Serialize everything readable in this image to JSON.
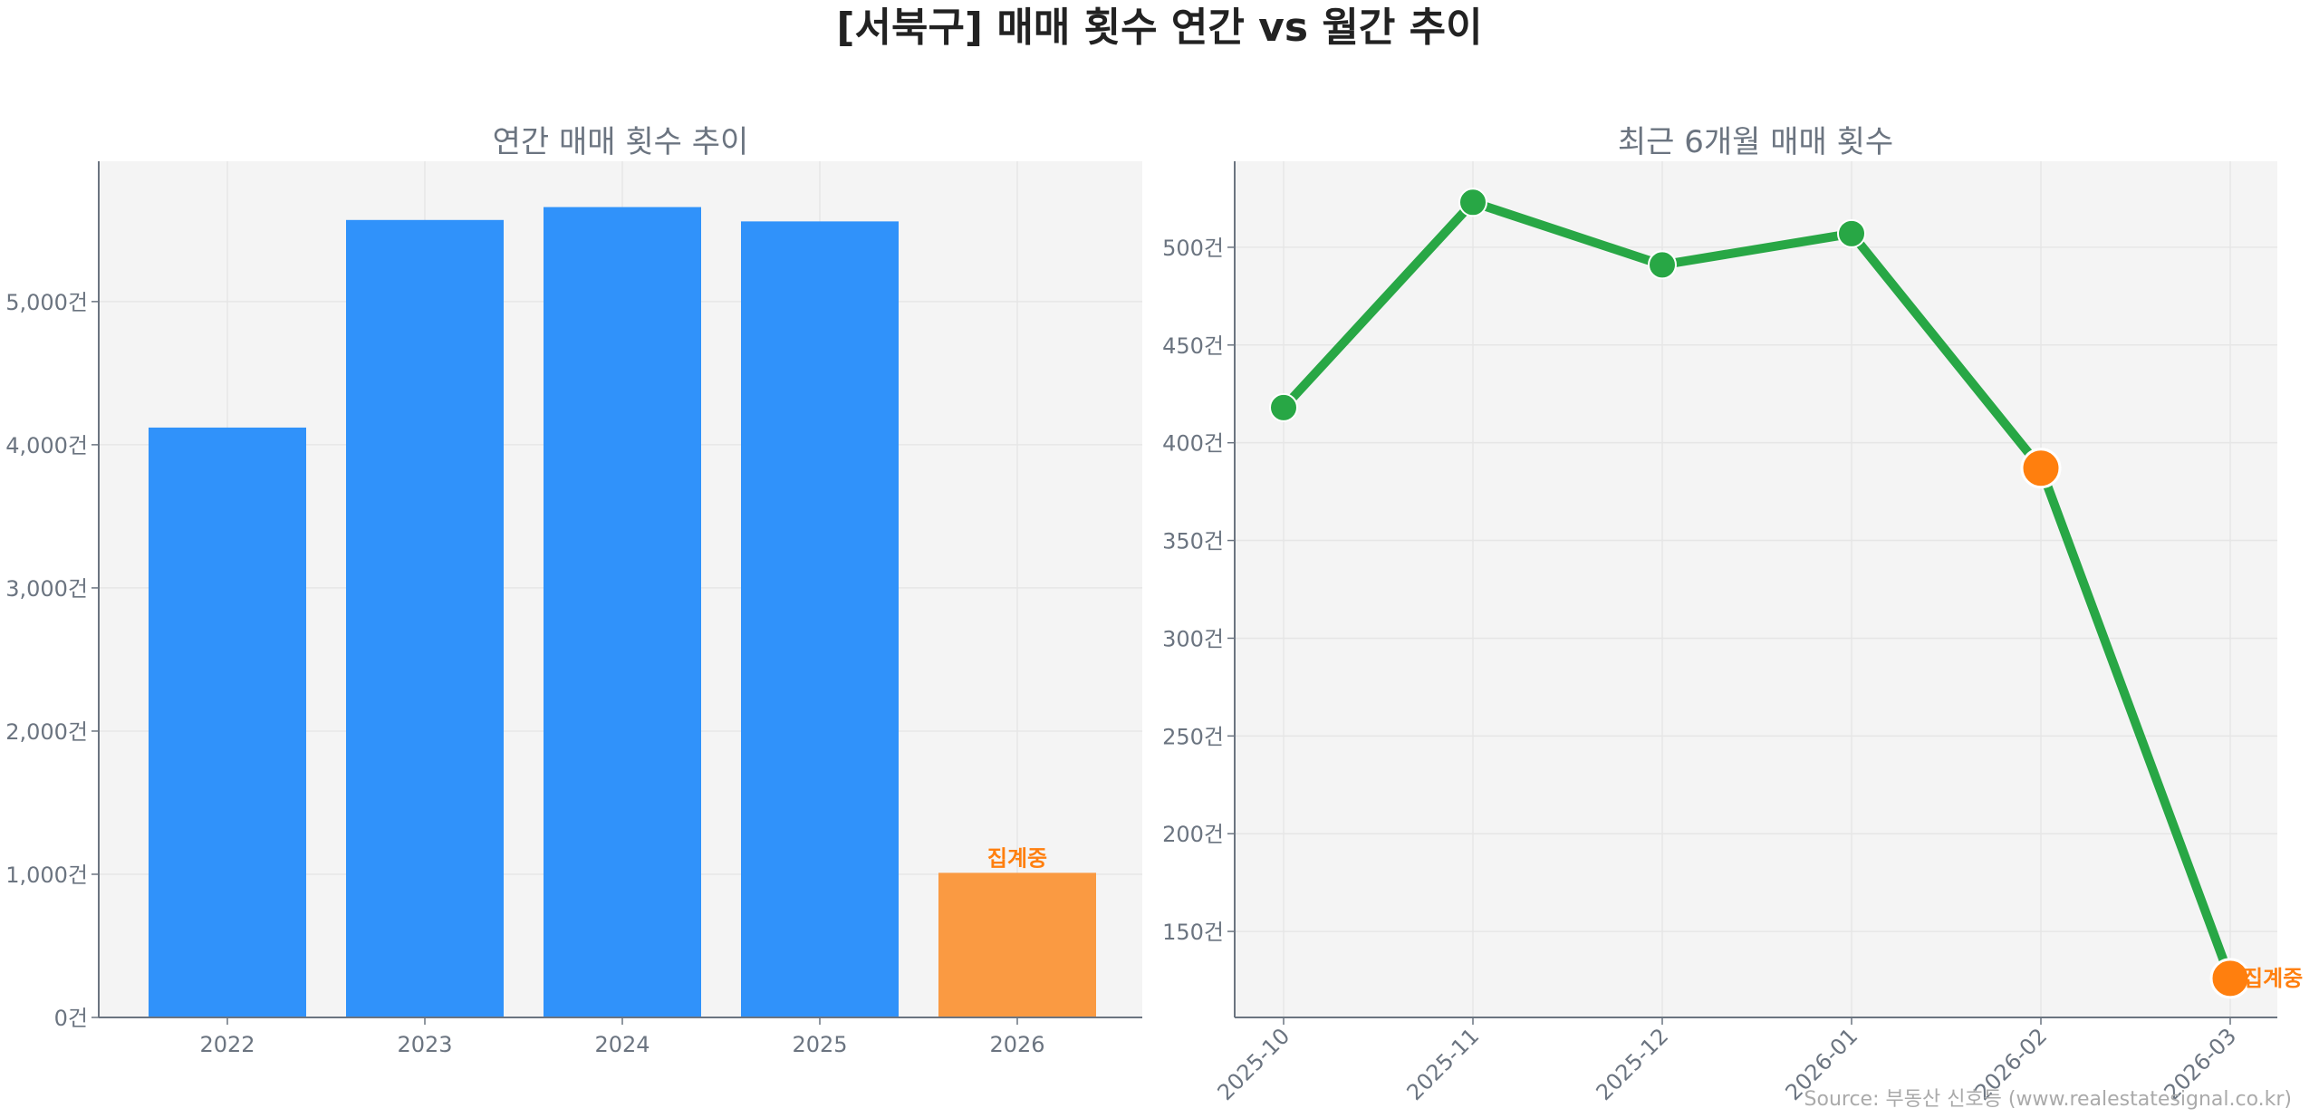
{
  "title": "[서북구] 매매 횟수 연간 vs 월간 추이",
  "source": "Source: 부동산 신호등 (www.realestatesignal.co.kr)",
  "colors": {
    "bar": "#3092fa",
    "bar_partial": "#fa9a42",
    "line": "#28a745",
    "point_partial": "#ff7f0e",
    "annotation": "#ff7f0e",
    "plot_bg": "#f4f4f4"
  },
  "chart_data": [
    {
      "type": "bar",
      "title": "연간 매매 횟수 추이",
      "categories": [
        "2022",
        "2023",
        "2024",
        "2025",
        "2026"
      ],
      "values": [
        4120,
        5570,
        5660,
        5560,
        1010
      ],
      "partial": [
        false,
        false,
        false,
        false,
        true
      ],
      "annotation": "집계중",
      "yticks": [
        0,
        1000,
        2000,
        3000,
        4000,
        5000
      ],
      "ytick_labels": [
        "0건",
        "1,000건",
        "2,000건",
        "3,000건",
        "4,000건",
        "5,000건"
      ],
      "ylim": [
        0,
        5980
      ],
      "grid": true,
      "xlabel": "",
      "ylabel": ""
    },
    {
      "type": "line",
      "title": "최근 6개월 매매 횟수",
      "categories": [
        "2025-10",
        "2025-11",
        "2025-12",
        "2026-01",
        "2026-02",
        "2026-03"
      ],
      "values": [
        418,
        523,
        491,
        507,
        387,
        126
      ],
      "partial": [
        false,
        false,
        false,
        false,
        true,
        true
      ],
      "annotation": "집계중",
      "yticks": [
        150,
        200,
        250,
        300,
        350,
        400,
        450,
        500
      ],
      "ytick_labels": [
        "150건",
        "200건",
        "250건",
        "300건",
        "350건",
        "400건",
        "450건",
        "500건"
      ],
      "ylim": [
        106,
        544
      ],
      "grid": true,
      "xlabel": "",
      "ylabel": ""
    }
  ]
}
